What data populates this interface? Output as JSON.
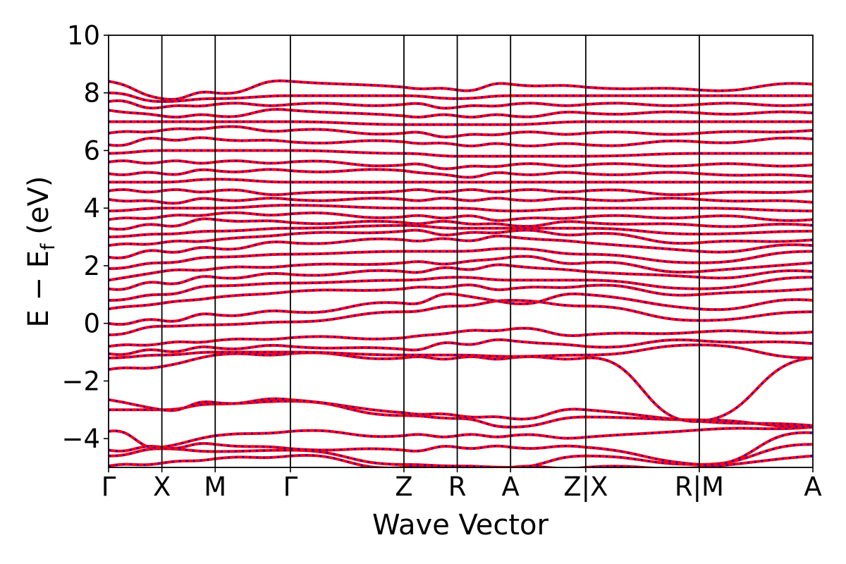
{
  "chart_data": {
    "type": "line",
    "xlabel": "Wave Vector",
    "ylabel": "E − E",
    "ylabel_sub": "f",
    "ylabel_tail": " (eV)",
    "ylim": [
      -5,
      10
    ],
    "yticks": [
      {
        "value": 10,
        "label": "10"
      },
      {
        "value": 8,
        "label": "8"
      },
      {
        "value": 6,
        "label": "6"
      },
      {
        "value": 4,
        "label": "4"
      },
      {
        "value": 2,
        "label": "2"
      },
      {
        "value": 0,
        "label": "0"
      },
      {
        "value": -2,
        "label": "−2"
      },
      {
        "value": -4,
        "label": "−4"
      }
    ],
    "kpath_segments": [
      {
        "from": "Γ",
        "to": "X",
        "length": 1.0
      },
      {
        "from": "X",
        "to": "M",
        "length": 1.0
      },
      {
        "from": "M",
        "to": "Γ",
        "length": 1.41
      },
      {
        "from": "Γ",
        "to": "Z",
        "length": 2.13
      },
      {
        "from": "Z",
        "to": "R",
        "length": 1.0
      },
      {
        "from": "R",
        "to": "A",
        "length": 1.0
      },
      {
        "from": "A",
        "to": "Z",
        "length": 1.41
      },
      {
        "from": "X",
        "to": "R",
        "length": 2.13
      },
      {
        "from": "M",
        "to": "A",
        "length": 2.13
      }
    ],
    "xticks": [
      "Γ",
      "X",
      "M",
      "Γ",
      "Z",
      "R",
      "A",
      "Z|X",
      "R|M",
      "A"
    ],
    "grid": false,
    "legend": "none",
    "series": [
      {
        "color": "#ff0000",
        "style": "solid"
      },
      {
        "color": "#0000ff",
        "style": "dotted"
      }
    ],
    "bands": [
      {
        "nodes": [
          -4.95,
          -4.85,
          -4.7,
          -4.6,
          -5.0,
          -5.0,
          -5.0,
          -5.0,
          -5.0,
          -4.6
        ]
      },
      {
        "nodes": [
          -4.6,
          -4.35,
          -4.45,
          -4.4,
          -4.9,
          -4.95,
          -5.0,
          -4.6,
          -4.9,
          -4.2
        ]
      },
      {
        "nodes": [
          -4.4,
          -4.3,
          -4.2,
          -4.35,
          -4.4,
          -4.3,
          -4.3,
          -4.3,
          -4.9,
          -3.8
        ]
      },
      {
        "nodes": [
          -3.75,
          -4.3,
          -3.9,
          -3.75,
          -3.9,
          -3.9,
          -3.9,
          -3.95,
          -3.7,
          -3.6
        ]
      },
      {
        "nodes": [
          -3.0,
          -3.0,
          -2.8,
          -2.7,
          -3.2,
          -3.3,
          -3.6,
          -3.25,
          -3.35,
          -3.6
        ]
      },
      {
        "nodes": [
          -2.65,
          -3.0,
          -2.75,
          -2.65,
          -3.1,
          -3.2,
          -3.3,
          -3.0,
          -3.4,
          -3.55
        ]
      },
      {
        "nodes": [
          -1.6,
          -1.5,
          -1.1,
          -1.05,
          -1.2,
          -1.2,
          -1.2,
          -1.2,
          -3.4,
          -1.2
        ]
      },
      {
        "nodes": [
          -1.2,
          -1.1,
          -1.0,
          -1.0,
          -1.1,
          -1.1,
          -1.15,
          -1.1,
          -0.75,
          -1.2
        ]
      },
      {
        "nodes": [
          -1.05,
          -0.95,
          -0.85,
          -0.8,
          -0.9,
          -0.7,
          -0.6,
          -0.8,
          -0.6,
          -0.7
        ]
      },
      {
        "nodes": [
          -0.8,
          -0.7,
          -0.6,
          -0.5,
          -0.5,
          -0.3,
          -0.2,
          -0.4,
          -0.3,
          -0.3
        ]
      },
      {
        "nodes": [
          -0.4,
          -0.1,
          -0.05,
          0.05,
          0.4,
          0.6,
          0.8,
          0.6,
          0.1,
          0.4
        ]
      },
      {
        "nodes": [
          0.0,
          0.1,
          0.3,
          0.4,
          0.7,
          1.0,
          0.7,
          1.0,
          0.5,
          0.8
        ]
      },
      {
        "nodes": [
          0.5,
          0.7,
          0.9,
          1.1,
          1.2,
          1.3,
          1.2,
          1.3,
          1.0,
          1.2
        ]
      },
      {
        "nodes": [
          0.8,
          1.0,
          1.3,
          1.4,
          1.5,
          1.6,
          1.5,
          1.5,
          1.2,
          1.6
        ]
      },
      {
        "nodes": [
          1.2,
          1.4,
          1.6,
          1.7,
          1.8,
          1.9,
          2.0,
          1.8,
          1.6,
          1.8
        ]
      },
      {
        "nodes": [
          1.5,
          1.8,
          1.9,
          2.0,
          2.1,
          2.1,
          2.3,
          2.1,
          1.8,
          2.1
        ]
      },
      {
        "nodes": [
          1.9,
          2.1,
          2.3,
          2.4,
          2.5,
          2.5,
          2.6,
          2.4,
          2.1,
          2.5
        ]
      },
      {
        "nodes": [
          2.3,
          2.5,
          2.6,
          2.8,
          2.9,
          2.9,
          3.0,
          2.8,
          2.5,
          2.7
        ]
      },
      {
        "nodes": [
          2.7,
          2.8,
          2.9,
          3.1,
          3.2,
          3.1,
          3.2,
          3.1,
          2.8,
          2.9
        ]
      },
      {
        "nodes": [
          3.0,
          3.1,
          3.2,
          3.3,
          3.4,
          3.3,
          3.3,
          3.3,
          3.1,
          3.2
        ]
      },
      {
        "nodes": [
          3.3,
          3.4,
          3.6,
          3.5,
          3.5,
          3.5,
          3.4,
          3.5,
          3.4,
          3.4
        ]
      },
      {
        "nodes": [
          3.6,
          3.7,
          3.8,
          3.8,
          3.7,
          3.7,
          3.6,
          3.7,
          3.7,
          3.6
        ]
      },
      {
        "nodes": [
          3.9,
          4.0,
          4.0,
          4.1,
          4.0,
          4.0,
          3.9,
          4.0,
          4.0,
          3.9
        ]
      },
      {
        "nodes": [
          4.3,
          4.2,
          4.3,
          4.3,
          4.3,
          4.3,
          4.3,
          4.3,
          4.3,
          4.2
        ]
      },
      {
        "nodes": [
          4.6,
          4.6,
          4.6,
          4.5,
          4.6,
          4.6,
          4.6,
          4.6,
          4.5,
          4.6
        ]
      },
      {
        "nodes": [
          4.9,
          4.9,
          5.0,
          4.9,
          4.9,
          4.9,
          4.9,
          4.9,
          4.9,
          4.9
        ]
      },
      {
        "nodes": [
          5.2,
          5.2,
          5.3,
          5.3,
          5.3,
          5.1,
          5.2,
          5.2,
          5.2,
          5.1
        ]
      },
      {
        "nodes": [
          5.6,
          5.6,
          5.6,
          5.6,
          5.5,
          5.4,
          5.5,
          5.5,
          5.5,
          5.5
        ]
      },
      {
        "nodes": [
          5.9,
          6.0,
          6.0,
          6.0,
          5.9,
          5.8,
          5.8,
          5.8,
          5.9,
          5.9
        ]
      },
      {
        "nodes": [
          6.2,
          6.4,
          6.4,
          6.3,
          6.3,
          6.2,
          6.2,
          6.2,
          6.3,
          6.4
        ]
      },
      {
        "nodes": [
          6.6,
          6.7,
          6.8,
          6.7,
          6.6,
          6.5,
          6.6,
          6.6,
          6.6,
          6.7
        ]
      },
      {
        "nodes": [
          7.0,
          7.0,
          7.0,
          7.0,
          6.9,
          6.9,
          6.9,
          7.0,
          7.0,
          7.0
        ]
      },
      {
        "nodes": [
          7.4,
          7.2,
          7.2,
          7.4,
          7.2,
          7.2,
          7.2,
          7.3,
          7.3,
          7.3
        ]
      },
      {
        "nodes": [
          7.7,
          7.5,
          7.6,
          7.6,
          7.6,
          7.5,
          7.6,
          7.6,
          7.6,
          7.6
        ]
      },
      {
        "nodes": [
          8.0,
          7.7,
          7.8,
          7.9,
          7.9,
          7.8,
          7.9,
          7.9,
          7.9,
          7.9
        ]
      },
      {
        "nodes": [
          8.4,
          7.8,
          8.0,
          8.4,
          8.2,
          8.1,
          8.3,
          8.2,
          8.1,
          8.3
        ]
      }
    ]
  }
}
